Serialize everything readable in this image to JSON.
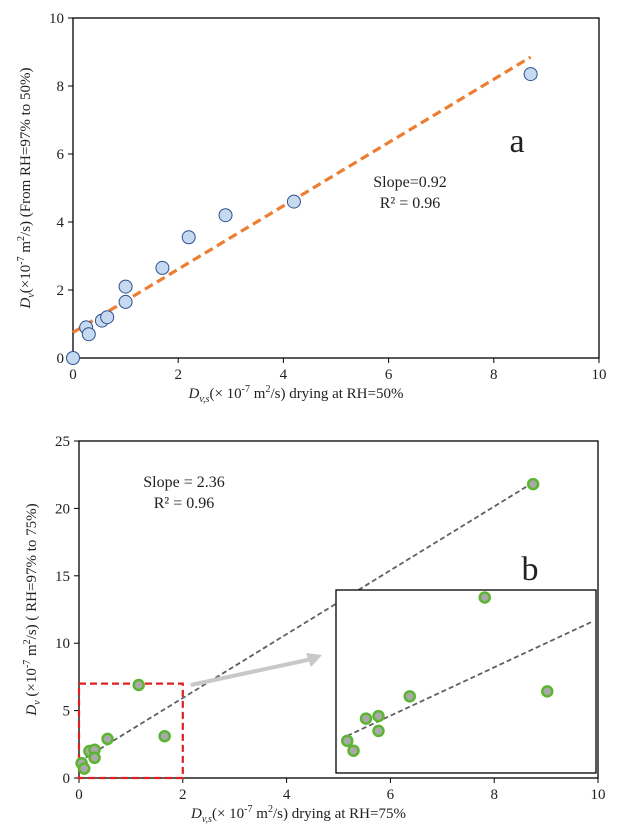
{
  "chart_data": [
    {
      "type": "scatter",
      "panel_label": "a",
      "xlabel": {
        "sym": "D",
        "sub": "v,s",
        "pre": "(× 10",
        "exp": "-7",
        "mid": " m",
        "exp2": "2",
        "post": "/s) drying at RH=50%"
      },
      "ylabel": {
        "sym": "D",
        "sub": "v",
        "pre": "(×10",
        "exp": "-7",
        "mid": " m",
        "exp2": "2",
        "post": "/s)  (From RH=97% to 50%)"
      },
      "xlim": [
        0,
        10
      ],
      "ylim": [
        0,
        10
      ],
      "xticks": [
        "0",
        "2",
        "4",
        "6",
        "8",
        "10"
      ],
      "yticks": [
        "0",
        "2",
        "4",
        "6",
        "8",
        "10"
      ],
      "annotations": [
        "Slope=0.92",
        "R² = 0.96"
      ],
      "trendline": {
        "x": [
          0,
          8.7
        ],
        "y": [
          0.75,
          8.85
        ]
      },
      "colors": {
        "marker_fill": "#c5d9f1",
        "marker_edge": "#2f4f8f",
        "trend": "#ed7d31"
      },
      "series": [
        {
          "x": [
            0,
            0.25,
            0.3,
            0.55,
            0.65,
            1.0,
            1.0,
            1.7,
            2.2,
            2.9,
            4.2,
            8.7
          ],
          "y": [
            0,
            0.9,
            0.7,
            1.1,
            1.2,
            2.1,
            1.65,
            2.65,
            3.55,
            4.2,
            4.6,
            8.35
          ]
        }
      ]
    },
    {
      "type": "scatter",
      "panel_label": "b",
      "xlabel": {
        "sym": "D",
        "sub": "v,s",
        "pre": "(× 10",
        "exp": "-7",
        "mid": " m",
        "exp2": "2",
        "post": "/s) drying at RH=75%"
      },
      "ylabel": {
        "sym": "D",
        "sub": "v",
        "pre": " (×10",
        "exp": "-7",
        "mid": " m",
        "exp2": "2",
        "post": "/s) ( RH=97% to 75%)"
      },
      "xlim": [
        0,
        10
      ],
      "ylim": [
        0,
        25
      ],
      "xticks": [
        "0",
        "2",
        "4",
        "6",
        "8",
        "10"
      ],
      "yticks": [
        "0",
        "5",
        "10",
        "15",
        "20",
        "25"
      ],
      "annotations": [
        "Slope = 2.36",
        "R² = 0.96"
      ],
      "trendline": {
        "x": [
          0,
          8.7
        ],
        "y": [
          1.2,
          21.8
        ]
      },
      "colors": {
        "marker_fill": "#a9a9a9",
        "marker_edge": "#5cb531",
        "trend": "#606060",
        "zoom_box": "#e02020",
        "arrow": "#c8c8c8"
      },
      "series": [
        {
          "x": [
            0.05,
            0.1,
            0.2,
            0.3,
            0.3,
            0.55,
            1.15,
            1.65,
            8.75
          ],
          "y": [
            1.1,
            0.7,
            2.0,
            2.1,
            1.5,
            2.9,
            6.9,
            3.1,
            21.8
          ]
        }
      ],
      "inset": {
        "x": [
          0.05,
          0.1,
          0.2,
          0.3,
          0.3,
          0.55,
          1.15,
          1.65
        ],
        "y": [
          1.1,
          0.7,
          2.0,
          2.1,
          1.5,
          2.9,
          6.9,
          3.1
        ],
        "xlim": [
          0,
          2
        ],
        "ylim": [
          0,
          7
        ],
        "trendline": {
          "x": [
            0.05,
            2.0
          ],
          "y": [
            1.3,
            5.9
          ]
        }
      }
    }
  ]
}
